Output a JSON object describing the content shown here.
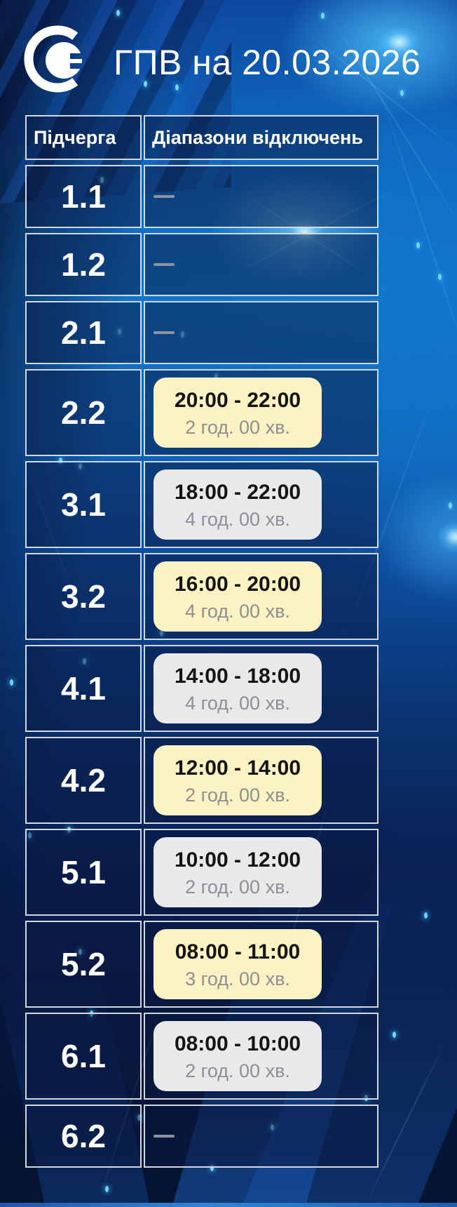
{
  "header": {
    "title": "ГПВ на 20.03.2026",
    "logo_icon": "power-plug-logo"
  },
  "chart_data": {
    "type": "table",
    "title": "ГПВ на 20.03.2026",
    "columns": [
      "Підчерга",
      "Діапазони відключень"
    ],
    "rows": [
      {
        "queue": "1.1",
        "range": null,
        "duration": null,
        "highlight": null
      },
      {
        "queue": "1.2",
        "range": null,
        "duration": null,
        "highlight": null
      },
      {
        "queue": "2.1",
        "range": null,
        "duration": null,
        "highlight": null
      },
      {
        "queue": "2.2",
        "range": "20:00 - 22:00",
        "duration": "2 год. 00 хв.",
        "highlight": "yellow"
      },
      {
        "queue": "3.1",
        "range": "18:00 - 22:00",
        "duration": "4 год. 00 хв.",
        "highlight": "gray"
      },
      {
        "queue": "3.2",
        "range": "16:00 - 20:00",
        "duration": "4 год. 00 хв.",
        "highlight": "yellow"
      },
      {
        "queue": "4.1",
        "range": "14:00 - 18:00",
        "duration": "4 год. 00 хв.",
        "highlight": "gray"
      },
      {
        "queue": "4.2",
        "range": "12:00 - 14:00",
        "duration": "2 год. 00 хв.",
        "highlight": "yellow"
      },
      {
        "queue": "5.1",
        "range": "10:00 - 12:00",
        "duration": "2 год. 00 хв.",
        "highlight": "gray"
      },
      {
        "queue": "5.2",
        "range": "08:00 - 11:00",
        "duration": "3 год. 00 хв.",
        "highlight": "yellow"
      },
      {
        "queue": "6.1",
        "range": "08:00 - 10:00",
        "duration": "2 год. 00 хв.",
        "highlight": "gray"
      },
      {
        "queue": "6.2",
        "range": null,
        "duration": null,
        "highlight": null
      }
    ],
    "legend_position": "none",
    "grid": true
  },
  "colors": {
    "highlight_yellow": "#FAF2C2",
    "highlight_gray": "#E9E9EC",
    "cell_border": "#DEE2E8",
    "time_text": "#141414",
    "duration_text": "#8F8F93",
    "background_bright_blue": "#1175CB",
    "background_dark_navy": "#071738"
  }
}
